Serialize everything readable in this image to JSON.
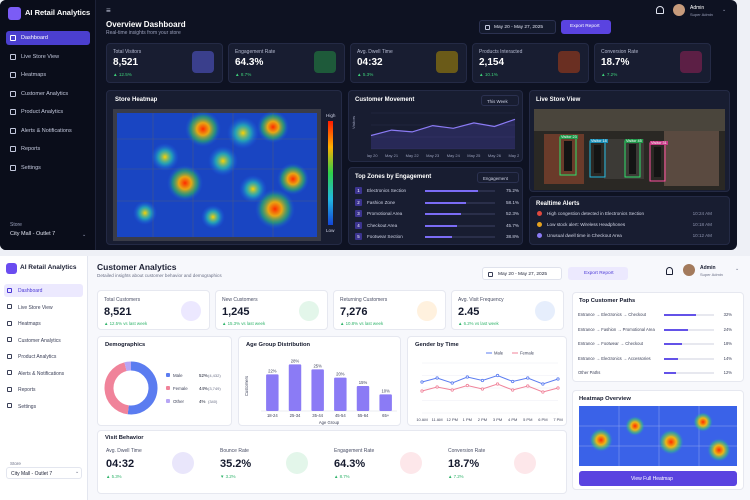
{
  "dark": {
    "brand": "AI Retail Analytics",
    "nav": [
      {
        "label": "Dashboard",
        "active": true
      },
      {
        "label": "Live Store View"
      },
      {
        "label": "Heatmaps"
      },
      {
        "label": "Customer Analytics"
      },
      {
        "label": "Product Analytics"
      },
      {
        "label": "Alerts & Notifications"
      },
      {
        "label": "Reports"
      },
      {
        "label": "Settings"
      }
    ],
    "store_label": "Store",
    "store_value": "City Mall - Outlet 7",
    "title": "Overview Dashboard",
    "subtitle": "Real-time insights from your store",
    "date_range": "May 20 - May 27, 2025",
    "export_label": "Export Report",
    "user_name": "Admin",
    "user_role": "Super Admin",
    "kpis": [
      {
        "label": "Total Visitors",
        "value": "8,521",
        "delta": "▲ 12.5%",
        "icon": "users-icon",
        "color": "#3a3f8c"
      },
      {
        "label": "Engagement Rate",
        "value": "64.3%",
        "delta": "▲ 8.7%",
        "icon": "trend-up-icon",
        "color": "#1e5a3a"
      },
      {
        "label": "Avg. Dwell Time",
        "value": "04:32",
        "delta": "▲ 5.3%",
        "icon": "clock-icon",
        "color": "#6a5a18"
      },
      {
        "label": "Products Interacted",
        "value": "2,154",
        "delta": "▲ 10.1%",
        "icon": "cart-icon",
        "color": "#6a2f22"
      },
      {
        "label": "Conversion Rate",
        "value": "18.7%",
        "delta": "▲ 7.2%",
        "icon": "target-icon",
        "color": "#5c1f45"
      }
    ],
    "heatmap_title": "Store Heatmap",
    "heat_high": "High",
    "heat_low": "Low",
    "movement_title": "Customer Movement",
    "movement_period": "This Week",
    "movement_ylabel": "Visitors",
    "movement_dates": [
      "May 20",
      "May 21",
      "May 22",
      "May 23",
      "May 24",
      "May 25",
      "May 26",
      "May 27"
    ],
    "live_title": "Live Store View",
    "live_tags": [
      "Visitor 23",
      "Visitor 18",
      "Visitor 45",
      "Visitor 31"
    ],
    "zones_title": "Top Zones by Engagement",
    "zones_filter": "Engagement",
    "zones": [
      {
        "num": "1",
        "name": "Electronics Section",
        "pct": "75.2%",
        "v": 0.75
      },
      {
        "num": "2",
        "name": "Fashion Zone",
        "pct": "58.1%",
        "v": 0.58
      },
      {
        "num": "3",
        "name": "Promotional Area",
        "pct": "52.3%",
        "v": 0.52
      },
      {
        "num": "4",
        "name": "Checkout Area",
        "pct": "45.7%",
        "v": 0.46
      },
      {
        "num": "5",
        "name": "Footwear Section",
        "pct": "38.8%",
        "v": 0.39
      }
    ],
    "alerts_title": "Realtime Alerts",
    "alerts": [
      {
        "text": "High congestion detected in Electronics Section",
        "time": "10:24 AM",
        "color": "#e0483e"
      },
      {
        "text": "Low stock alert: Wireless Headphones",
        "time": "10:18 AM",
        "color": "#e6a21f"
      },
      {
        "text": "Unusual dwell time in Checkout Area",
        "time": "10:12 AM",
        "color": "#8b7bf5"
      }
    ]
  },
  "light": {
    "brand": "AI Retail Analytics",
    "nav": [
      {
        "label": "Dashboard",
        "active": true
      },
      {
        "label": "Live Store View"
      },
      {
        "label": "Heatmaps"
      },
      {
        "label": "Customer Analytics"
      },
      {
        "label": "Product Analytics"
      },
      {
        "label": "Alerts & Notifications"
      },
      {
        "label": "Reports"
      },
      {
        "label": "Settings"
      }
    ],
    "store_label": "Store",
    "store_value": "City Mall - Outlet 7",
    "title": "Customer Analytics",
    "subtitle": "Detailed insights about customer behavior and demographics",
    "date_range": "May 20 - May 27, 2025",
    "export_label": "Export Report",
    "user_name": "Admin",
    "user_role": "Super Admin",
    "kpis": [
      {
        "label": "Total Customers",
        "value": "8,521",
        "delta": "▲ 12.5% vs last week",
        "icon": "users-icon",
        "color": "#ece8ff"
      },
      {
        "label": "New Customers",
        "value": "1,245",
        "delta": "▲ 15.3% vs last week",
        "icon": "user-plus-icon",
        "color": "#e3f6ea"
      },
      {
        "label": "Returning Customers",
        "value": "7,276",
        "delta": "▲ 10.8% vs last week",
        "icon": "refresh-icon",
        "color": "#fff1de"
      },
      {
        "label": "Avg. Visit Frequency",
        "value": "2.45",
        "delta": "▲ 6.2% vs last week",
        "icon": "bar-chart-icon",
        "color": "#e6eefc"
      }
    ],
    "demographics_title": "Demographics",
    "demographics": [
      {
        "label": "Male",
        "pct": "52%",
        "count": "(4,432)",
        "color": "#5b7cf0"
      },
      {
        "label": "Female",
        "pct": "44%",
        "count": "(3,749)",
        "color": "#f0839a"
      },
      {
        "label": "Other",
        "pct": "4%",
        "count": "(340)",
        "color": "#b7a6f5"
      }
    ],
    "paths_title": "Top Customer Paths",
    "paths": [
      {
        "name": "Entrance → Electronics → Checkout",
        "pct": "32%",
        "v": 0.64
      },
      {
        "name": "Entrance → Fashion → Promotional Area",
        "pct": "24%",
        "v": 0.48
      },
      {
        "name": "Entrance → Footwear → Checkout",
        "pct": "18%",
        "v": 0.36
      },
      {
        "name": "Entrance → Electronics → Accessories",
        "pct": "14%",
        "v": 0.28
      },
      {
        "name": "Other Paths",
        "pct": "12%",
        "v": 0.24
      }
    ],
    "heatmap_overview_title": "Heatmap Overview",
    "view_heatmap": "View Full Heatmap",
    "visit_title": "Visit Behavior",
    "visit": [
      {
        "label": "Avg. Dwell Time",
        "value": "04:32",
        "delta": "▲ 5.3%",
        "icon": "clock-icon",
        "color": "#e9e6fb",
        "dc": "#2fb36a"
      },
      {
        "label": "Bounce Rate",
        "value": "35.2%",
        "delta": "▼ 3.2%",
        "icon": "arrow-right-icon",
        "color": "#e3f6ea",
        "dc": "#2fb36a"
      },
      {
        "label": "Engagement Rate",
        "value": "64.3%",
        "delta": "▲ 8.7%",
        "icon": "pulse-icon",
        "color": "#fde7ea",
        "dc": "#2fb36a"
      },
      {
        "label": "Conversion Rate",
        "value": "18.7%",
        "delta": "▲ 7.2%",
        "icon": "target-icon",
        "color": "#fde7ea",
        "dc": "#2fb36a"
      }
    ]
  },
  "chart_data": [
    {
      "type": "bar",
      "title": "Age Group Distribution",
      "categories": [
        "18-24",
        "25-34",
        "35-44",
        "45-54",
        "55-64",
        "65+"
      ],
      "values": [
        22,
        28,
        25,
        20,
        15,
        10
      ],
      "labels": [
        "22%",
        "28%",
        "25%",
        "20%",
        "15%",
        "10%"
      ],
      "xlabel": "Age Group",
      "ylabel": "Customers",
      "ylim": [
        0,
        30
      ]
    },
    {
      "type": "line",
      "title": "Gender by Time",
      "x": [
        "10 AM",
        "11 AM",
        "12 PM",
        "1 PM",
        "2 PM",
        "3 PM",
        "4 PM",
        "5 PM",
        "6 PM",
        "7 PM"
      ],
      "series": [
        {
          "name": "Male",
          "color": "#5b7cf0",
          "values": [
            62,
            70,
            60,
            72,
            65,
            75,
            63,
            70,
            58,
            68
          ]
        },
        {
          "name": "Female",
          "color": "#f0839a",
          "values": [
            44,
            52,
            46,
            55,
            48,
            58,
            46,
            54,
            42,
            50
          ]
        }
      ],
      "ylim": [
        0,
        100
      ]
    },
    {
      "type": "line",
      "title": "Customer Movement",
      "x": [
        "May 20",
        "May 21",
        "May 22",
        "May 23",
        "May 24",
        "May 25",
        "May 26",
        "May 27"
      ],
      "series": [
        {
          "name": "",
          "color": "#8b7bf5",
          "values": [
            30,
            42,
            38,
            52,
            46,
            58,
            50,
            66
          ]
        }
      ],
      "ylim": [
        0,
        80
      ]
    }
  ]
}
